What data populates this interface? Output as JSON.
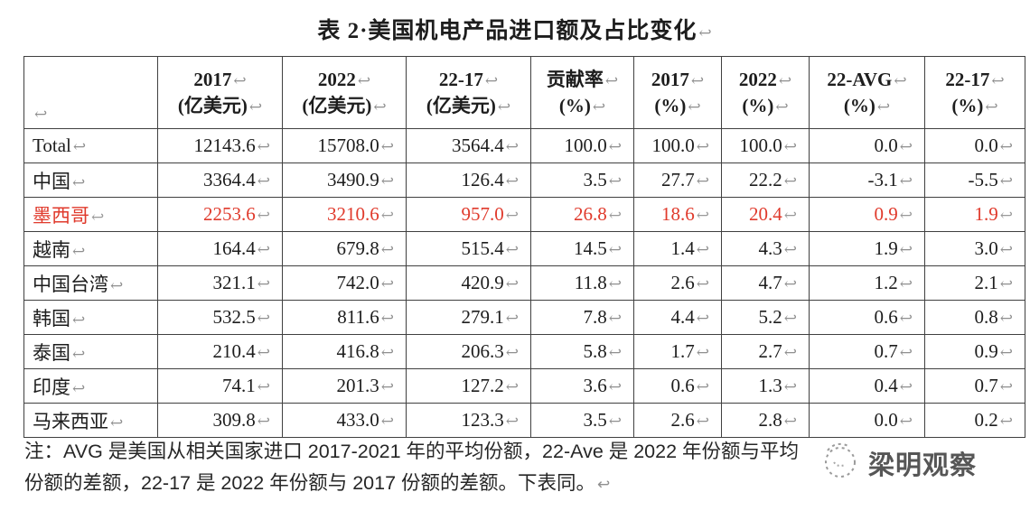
{
  "title": "表 2·美国机电产品进口额及占比变化",
  "return_mark": "↩",
  "colors": {
    "highlight_red": "#e03a2c",
    "text": "#1d1d1d",
    "mark_gray": "#8f8f8f",
    "border": "#404040",
    "watermark_gray": "#565656"
  },
  "table": {
    "header": {
      "corner": "",
      "columns": [
        {
          "line1": "2017",
          "line2": "(亿美元)"
        },
        {
          "line1": "2022",
          "line2": "(亿美元)"
        },
        {
          "line1": "22-17",
          "line2": "(亿美元)"
        },
        {
          "line1": "贡献率",
          "line2": "(%)"
        },
        {
          "line1": "2017",
          "line2": "(%)"
        },
        {
          "line1": "2022",
          "line2": "(%)"
        },
        {
          "line1": "22-AVG",
          "line2": "(%)"
        },
        {
          "line1": "22-17",
          "line2": "(%)"
        }
      ]
    },
    "rows": [
      {
        "label": "Total",
        "highlight": false,
        "values": [
          "12143.6",
          "15708.0",
          "3564.4",
          "100.0",
          "100.0",
          "100.0",
          "0.0",
          "0.0"
        ]
      },
      {
        "label": "中国",
        "highlight": false,
        "values": [
          "3364.4",
          "3490.9",
          "126.4",
          "3.5",
          "27.7",
          "22.2",
          "-3.1",
          "-5.5"
        ]
      },
      {
        "label": "墨西哥",
        "highlight": true,
        "values": [
          "2253.6",
          "3210.6",
          "957.0",
          "26.8",
          "18.6",
          "20.4",
          "0.9",
          "1.9"
        ]
      },
      {
        "label": "越南",
        "highlight": false,
        "values": [
          "164.4",
          "679.8",
          "515.4",
          "14.5",
          "1.4",
          "4.3",
          "1.9",
          "3.0"
        ]
      },
      {
        "label": "中国台湾",
        "highlight": false,
        "values": [
          "321.1",
          "742.0",
          "420.9",
          "11.8",
          "2.6",
          "4.7",
          "1.2",
          "2.1"
        ]
      },
      {
        "label": "韩国",
        "highlight": false,
        "values": [
          "532.5",
          "811.6",
          "279.1",
          "7.8",
          "4.4",
          "5.2",
          "0.6",
          "0.8"
        ]
      },
      {
        "label": "泰国",
        "highlight": false,
        "values": [
          "210.4",
          "416.8",
          "206.3",
          "5.8",
          "1.7",
          "2.7",
          "0.7",
          "0.9"
        ]
      },
      {
        "label": "印度",
        "highlight": false,
        "values": [
          "74.1",
          "201.3",
          "127.2",
          "3.6",
          "0.6",
          "1.3",
          "0.4",
          "0.7"
        ]
      },
      {
        "label": "马来西亚",
        "highlight": false,
        "values": [
          "309.8",
          "433.0",
          "123.3",
          "3.5",
          "2.6",
          "2.8",
          "0.0",
          "0.2"
        ]
      }
    ]
  },
  "note": {
    "line1": "注：AVG 是美国从相关国家进口 2017-2021 年的平均份额，22-Ave 是 2022 年份额与平均",
    "line2": "份额的差额，22-17 是 2022 年份额与 2017 份额的差额。下表同。"
  },
  "watermark": {
    "text": "梁明观察"
  }
}
